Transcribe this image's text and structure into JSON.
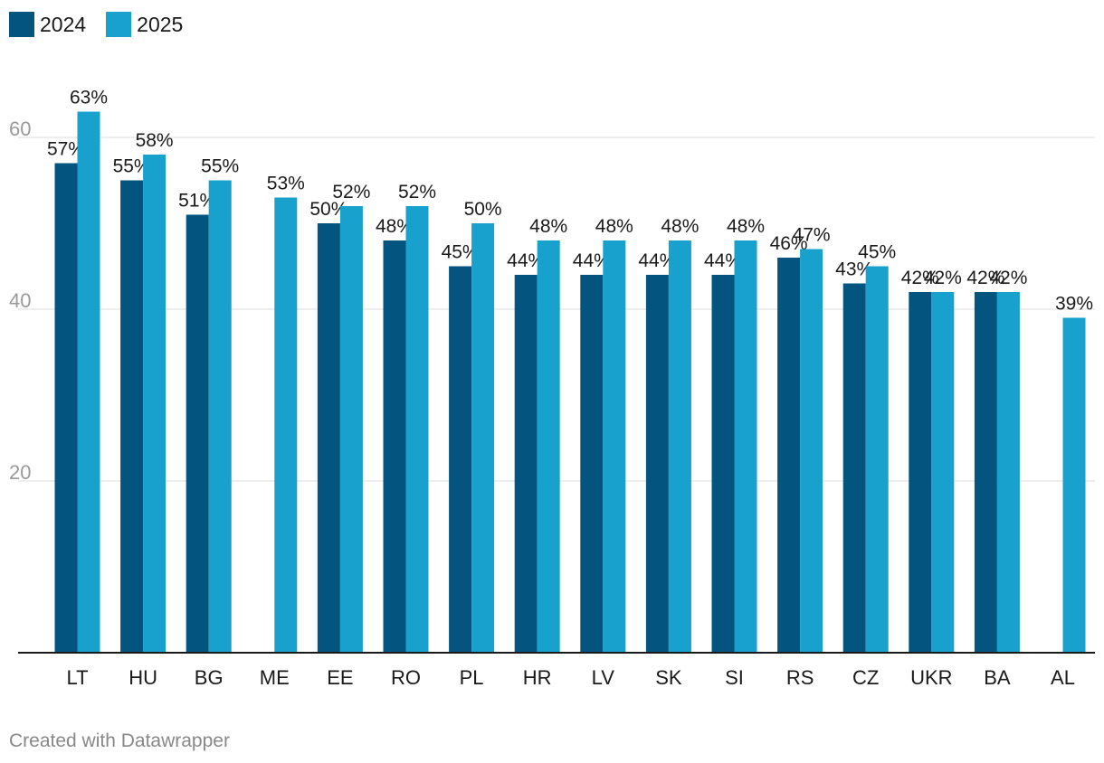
{
  "chart_data": {
    "type": "bar",
    "categories": [
      "LT",
      "HU",
      "BG",
      "ME",
      "EE",
      "RO",
      "PL",
      "HR",
      "LV",
      "SK",
      "SI",
      "RS",
      "CZ",
      "UKR",
      "BA",
      "AL"
    ],
    "series": [
      {
        "name": "2024",
        "color": "#03547e",
        "values": [
          57,
          55,
          51,
          null,
          50,
          48,
          45,
          44,
          44,
          44,
          44,
          46,
          43,
          42,
          42,
          null
        ],
        "labels": [
          "57%",
          "55%",
          "51%",
          "",
          "50%",
          "48%",
          "45%",
          "44%",
          "44%",
          "44%",
          "44%",
          "46%",
          "43%",
          "42%",
          "42%",
          ""
        ]
      },
      {
        "name": "2025",
        "color": "#18a1cd",
        "values": [
          63,
          58,
          55,
          53,
          52,
          52,
          50,
          48,
          48,
          48,
          48,
          47,
          45,
          42,
          42,
          39
        ],
        "labels": [
          "63%",
          "58%",
          "55%",
          "53%",
          "52%",
          "52%",
          "50%",
          "48%",
          "48%",
          "48%",
          "48%",
          "47%",
          "45%",
          "42%",
          "42%",
          "39%"
        ]
      }
    ],
    "ylim": [
      0,
      63
    ],
    "yticks": [
      20,
      40,
      60
    ],
    "ytick_labels": [
      "20",
      "40",
      "60"
    ],
    "grid": true,
    "legend_position": "top-left"
  },
  "footer": {
    "credit": "Created with Datawrapper"
  }
}
